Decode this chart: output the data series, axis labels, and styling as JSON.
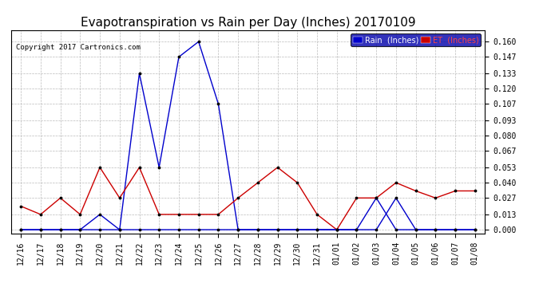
{
  "title": "Evapotranspiration vs Rain per Day (Inches) 20170109",
  "copyright": "Copyright 2017 Cartronics.com",
  "x_labels": [
    "12/16",
    "12/17",
    "12/18",
    "12/19",
    "12/20",
    "12/21",
    "12/22",
    "12/23",
    "12/24",
    "12/25",
    "12/26",
    "12/27",
    "12/28",
    "12/29",
    "12/30",
    "12/31",
    "01/01",
    "01/02",
    "01/03",
    "01/04",
    "01/05",
    "01/06",
    "01/07",
    "01/08"
  ],
  "rain_values": [
    0.0,
    0.0,
    0.0,
    0.0,
    0.0,
    0.0,
    0.0,
    0.0,
    0.0,
    0.0,
    0.0,
    0.0,
    0.0,
    0.0,
    0.0,
    0.0,
    0.0,
    0.0,
    0.027,
    0.0,
    0.0,
    0.0,
    0.0,
    0.0
  ],
  "et_values": [
    0.02,
    0.013,
    0.027,
    0.013,
    0.053,
    0.027,
    0.053,
    0.013,
    0.013,
    0.013,
    0.013,
    0.027,
    0.04,
    0.053,
    0.04,
    0.013,
    0.0,
    0.027,
    0.027,
    0.04,
    0.033,
    0.027,
    0.033,
    0.033
  ],
  "blue_rain_line": [
    0.0,
    0.0,
    0.0,
    0.0,
    0.013,
    0.0,
    0.133,
    0.053,
    0.147,
    0.16,
    0.107,
    0.0,
    0.0,
    0.0,
    0.0,
    0.0,
    0.0,
    0.0,
    0.0,
    0.027,
    0.0,
    0.0,
    0.0,
    0.0
  ],
  "yticks": [
    0.0,
    0.013,
    0.027,
    0.04,
    0.053,
    0.067,
    0.08,
    0.093,
    0.107,
    0.12,
    0.133,
    0.147,
    0.16
  ],
  "rain_color": "#0000cc",
  "et_color": "#cc0000",
  "bg_color": "#ffffff",
  "grid_color": "#bbbbbb",
  "title_fontsize": 11,
  "tick_fontsize": 7,
  "legend_rain_bg": "#0000cc",
  "legend_et_bg": "#cc0000",
  "legend_outer_bg": "#0000aa"
}
